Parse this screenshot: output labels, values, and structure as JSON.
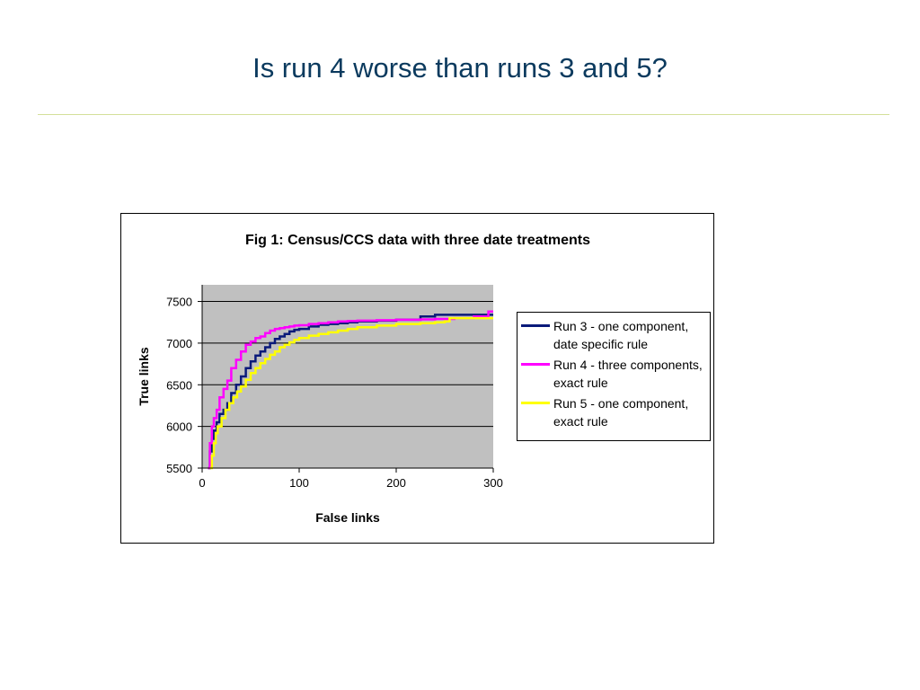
{
  "slide": {
    "title": "Is run 4 worse than runs 3 and 5?"
  },
  "colors": {
    "title": "#0b3a5e",
    "rule": "#d4e09a",
    "plot_background": "#c0c0c0"
  },
  "chart_data": {
    "type": "line",
    "title": "Fig 1: Census/CCS data with three date treatments",
    "xlabel": "False links",
    "ylabel": "True links",
    "xlim": [
      0,
      300
    ],
    "ylim": [
      5500,
      7700
    ],
    "xticks": [
      0,
      100,
      200,
      300
    ],
    "yticks": [
      5500,
      6000,
      6500,
      7000,
      7500
    ],
    "grid": "horizontal",
    "legend_position": "right",
    "series": [
      {
        "name": "Run 3 - one component, date specific rule",
        "color": "#0a1a7a",
        "x": [
          6,
          8,
          10,
          12,
          15,
          18,
          22,
          26,
          30,
          35,
          40,
          45,
          50,
          55,
          60,
          65,
          70,
          75,
          80,
          85,
          90,
          95,
          100,
          110,
          120,
          130,
          140,
          150,
          160,
          180,
          200,
          225,
          240,
          260,
          280,
          300
        ],
        "y": [
          5500,
          5700,
          5850,
          5950,
          6050,
          6150,
          6200,
          6280,
          6400,
          6500,
          6600,
          6700,
          6780,
          6850,
          6900,
          6950,
          7000,
          7050,
          7080,
          7110,
          7140,
          7160,
          7170,
          7200,
          7220,
          7230,
          7240,
          7250,
          7260,
          7270,
          7280,
          7320,
          7340,
          7340,
          7340,
          7340
        ]
      },
      {
        "name": "Run 4 - three components, exact rule",
        "color": "#ff00ff",
        "x": [
          6,
          8,
          10,
          12,
          15,
          18,
          22,
          26,
          30,
          35,
          40,
          45,
          50,
          55,
          60,
          65,
          70,
          75,
          80,
          85,
          90,
          95,
          100,
          110,
          120,
          130,
          140,
          150,
          160,
          180,
          200,
          225,
          240,
          260,
          280,
          295,
          300
        ],
        "y": [
          5500,
          5800,
          6000,
          6100,
          6200,
          6350,
          6450,
          6550,
          6700,
          6800,
          6900,
          6980,
          7020,
          7060,
          7080,
          7120,
          7150,
          7170,
          7180,
          7190,
          7200,
          7210,
          7215,
          7230,
          7240,
          7250,
          7260,
          7265,
          7270,
          7275,
          7280,
          7285,
          7290,
          7300,
          7320,
          7380,
          7380
        ]
      },
      {
        "name": "Run 5 - one component, exact rule",
        "color": "#ffff00",
        "x": [
          8,
          10,
          12,
          14,
          16,
          20,
          24,
          28,
          32,
          36,
          40,
          45,
          50,
          55,
          60,
          65,
          70,
          75,
          80,
          85,
          90,
          95,
          100,
          110,
          120,
          130,
          140,
          150,
          160,
          180,
          200,
          225,
          240,
          250,
          255,
          280,
          300
        ],
        "y": [
          5500,
          5650,
          5800,
          5920,
          6000,
          6100,
          6200,
          6280,
          6350,
          6420,
          6480,
          6560,
          6640,
          6700,
          6760,
          6810,
          6860,
          6900,
          6950,
          6980,
          7010,
          7040,
          7060,
          7090,
          7110,
          7130,
          7150,
          7170,
          7190,
          7210,
          7230,
          7240,
          7250,
          7260,
          7300,
          7300,
          7300
        ]
      }
    ]
  }
}
